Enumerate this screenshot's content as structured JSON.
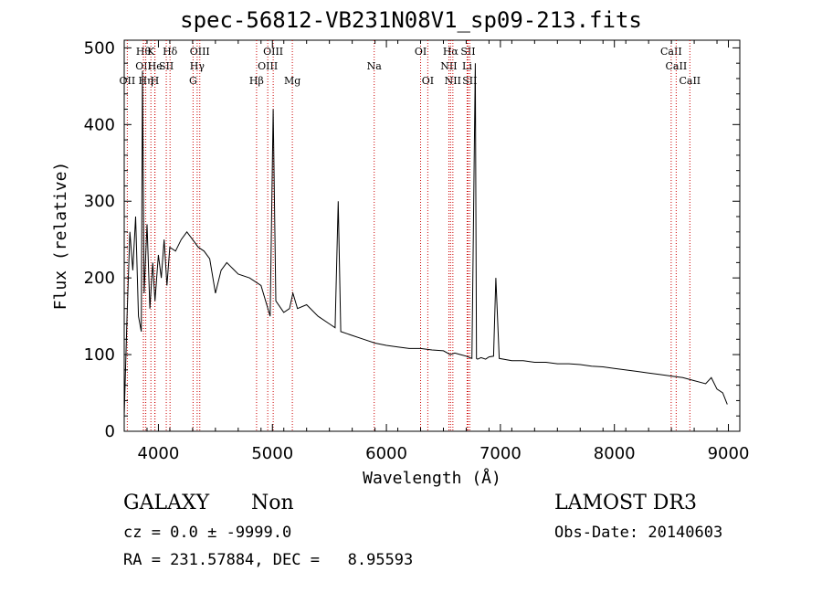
{
  "title": "spec-56812-VB231N08V1_sp09-213.fits",
  "chart_data": {
    "type": "line",
    "xlabel": "Wavelength (Å)",
    "ylabel": "Flux (relative)",
    "xlim": [
      3700,
      9100
    ],
    "ylim": [
      0,
      510
    ],
    "xticks": [
      4000,
      5000,
      6000,
      7000,
      8000,
      9000
    ],
    "yticks": [
      0,
      100,
      200,
      300,
      400,
      500
    ],
    "line_color": "#000000",
    "marker_color": "#cc0000",
    "series": [
      {
        "name": "spectrum",
        "x": [
          3700,
          3725,
          3750,
          3775,
          3800,
          3825,
          3850,
          3860,
          3875,
          3900,
          3925,
          3950,
          3970,
          4000,
          4025,
          4050,
          4075,
          4100,
          4150,
          4200,
          4250,
          4300,
          4350,
          4400,
          4450,
          4500,
          4550,
          4600,
          4700,
          4800,
          4900,
          4980,
          5007,
          5030,
          5100,
          5150,
          5180,
          5220,
          5300,
          5400,
          5500,
          5550,
          5577,
          5600,
          5700,
          5800,
          5900,
          6000,
          6100,
          6200,
          6300,
          6400,
          6500,
          6560,
          6600,
          6650,
          6700,
          6750,
          6780,
          6790,
          6800,
          6830,
          6870,
          6900,
          6940,
          6960,
          6990,
          7100,
          7200,
          7300,
          7400,
          7500,
          7600,
          7700,
          7800,
          7900,
          8000,
          8100,
          8200,
          8300,
          8400,
          8500,
          8600,
          8700,
          8800,
          8850,
          8900,
          8950,
          8990
        ],
        "y": [
          20,
          150,
          260,
          210,
          280,
          150,
          130,
          470,
          180,
          270,
          160,
          220,
          170,
          230,
          200,
          250,
          190,
          240,
          235,
          250,
          260,
          250,
          240,
          235,
          225,
          180,
          210,
          220,
          205,
          200,
          190,
          150,
          420,
          170,
          155,
          160,
          180,
          160,
          165,
          150,
          140,
          135,
          300,
          130,
          125,
          120,
          115,
          112,
          110,
          108,
          108,
          106,
          105,
          100,
          102,
          100,
          98,
          95,
          480,
          95,
          94,
          96,
          94,
          97,
          98,
          200,
          95,
          92,
          92,
          90,
          90,
          88,
          88,
          87,
          85,
          84,
          82,
          80,
          78,
          76,
          74,
          72,
          70,
          66,
          62,
          70,
          55,
          50,
          35
        ]
      }
    ],
    "emission_markers": [
      {
        "w": 3727,
        "label": "OII",
        "row": 3
      },
      {
        "w": 3868,
        "label": "Hθ",
        "row": 1
      },
      {
        "w": 3869,
        "label": "OII",
        "row": 2
      },
      {
        "w": 3889,
        "label": "Hη",
        "row": 3
      },
      {
        "w": 3934,
        "label": "K",
        "row": 1
      },
      {
        "w": 3968,
        "label": "H",
        "row": 3
      },
      {
        "w": 3970,
        "label": "He",
        "row": 2
      },
      {
        "w": 4069,
        "label": "SII",
        "row": 2
      },
      {
        "w": 4102,
        "label": "Hδ",
        "row": 1
      },
      {
        "w": 4304,
        "label": "G",
        "row": 3
      },
      {
        "w": 4340,
        "label": "Hγ",
        "row": 2
      },
      {
        "w": 4363,
        "label": "OIII",
        "row": 1
      },
      {
        "w": 4861,
        "label": "Hβ",
        "row": 3
      },
      {
        "w": 4959,
        "label": "OIII",
        "row": 2
      },
      {
        "w": 5007,
        "label": "OIII",
        "row": 1
      },
      {
        "w": 5175,
        "label": "Mg",
        "row": 3
      },
      {
        "w": 5893,
        "label": "Na",
        "row": 2
      },
      {
        "w": 6300,
        "label": "OI",
        "row": 1
      },
      {
        "w": 6363,
        "label": "OI",
        "row": 3
      },
      {
        "w": 6548,
        "label": "NII",
        "row": 2
      },
      {
        "w": 6563,
        "label": "Hα",
        "row": 1
      },
      {
        "w": 6583,
        "label": "NII",
        "row": 3
      },
      {
        "w": 6708,
        "label": "Li",
        "row": 2
      },
      {
        "w": 6716,
        "label": "SII",
        "row": 1
      },
      {
        "w": 6731,
        "label": "SII",
        "row": 3
      },
      {
        "w": 8498,
        "label": "CaII",
        "row": 1
      },
      {
        "w": 8542,
        "label": "CaII",
        "row": 2
      },
      {
        "w": 8662,
        "label": "CaII",
        "row": 3
      }
    ]
  },
  "info": {
    "class_label": "GALAXY",
    "subclass_label": "Non",
    "cz": "cz = 0.0 ± -9999.0",
    "coords": "RA = 231.57884, DEC =   8.95593",
    "survey": "LAMOST DR3",
    "obs_date": "Obs-Date: 20140603"
  }
}
